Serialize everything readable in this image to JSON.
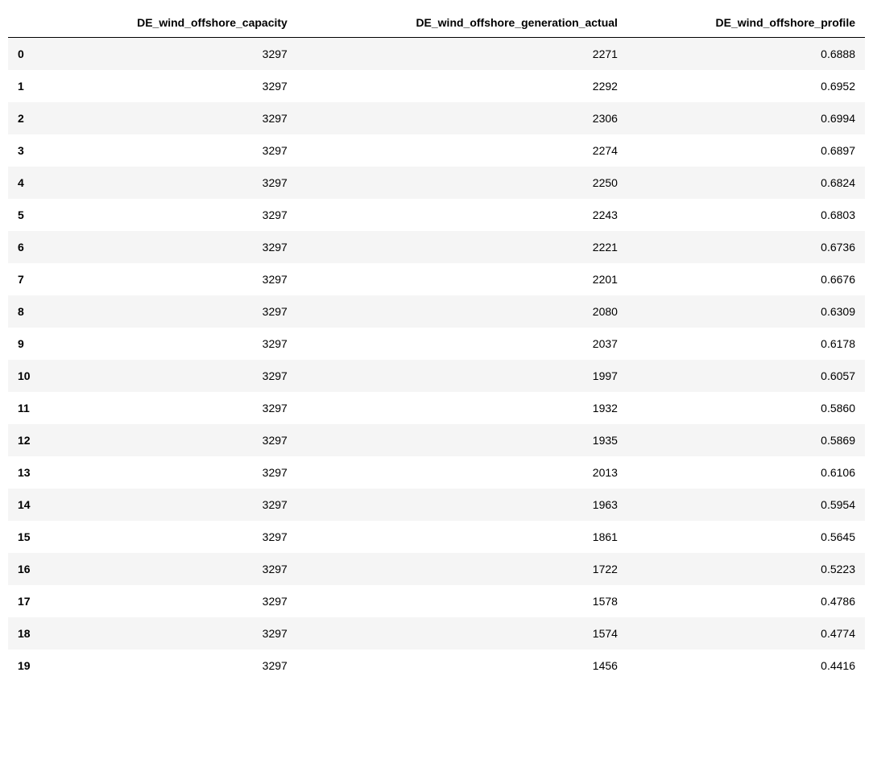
{
  "table": {
    "type": "table",
    "background_color": "#ffffff",
    "row_stripe_colors": [
      "#f5f5f5",
      "#ffffff"
    ],
    "header_border_color": "#000000",
    "text_color": "#000000",
    "font_size_pt": 10.5,
    "header_font_weight": 700,
    "index_font_weight": 700,
    "cell_font_weight": 400,
    "columns": [
      {
        "key": "capacity",
        "label": "DE_wind_offshore_capacity",
        "align": "right",
        "decimals": 0
      },
      {
        "key": "generation",
        "label": "DE_wind_offshore_generation_actual",
        "align": "right",
        "decimals": 0
      },
      {
        "key": "profile",
        "label": "DE_wind_offshore_profile",
        "align": "right",
        "decimals": 4
      }
    ],
    "index": [
      "0",
      "1",
      "2",
      "3",
      "4",
      "5",
      "6",
      "7",
      "8",
      "9",
      "10",
      "11",
      "12",
      "13",
      "14",
      "15",
      "16",
      "17",
      "18",
      "19"
    ],
    "data": [
      {
        "capacity": 3297,
        "generation": 2271,
        "profile": 0.6888
      },
      {
        "capacity": 3297,
        "generation": 2292,
        "profile": 0.6952
      },
      {
        "capacity": 3297,
        "generation": 2306,
        "profile": 0.6994
      },
      {
        "capacity": 3297,
        "generation": 2274,
        "profile": 0.6897
      },
      {
        "capacity": 3297,
        "generation": 2250,
        "profile": 0.6824
      },
      {
        "capacity": 3297,
        "generation": 2243,
        "profile": 0.6803
      },
      {
        "capacity": 3297,
        "generation": 2221,
        "profile": 0.6736
      },
      {
        "capacity": 3297,
        "generation": 2201,
        "profile": 0.6676
      },
      {
        "capacity": 3297,
        "generation": 2080,
        "profile": 0.6309
      },
      {
        "capacity": 3297,
        "generation": 2037,
        "profile": 0.6178
      },
      {
        "capacity": 3297,
        "generation": 1997,
        "profile": 0.6057
      },
      {
        "capacity": 3297,
        "generation": 1932,
        "profile": 0.586
      },
      {
        "capacity": 3297,
        "generation": 1935,
        "profile": 0.5869
      },
      {
        "capacity": 3297,
        "generation": 2013,
        "profile": 0.6106
      },
      {
        "capacity": 3297,
        "generation": 1963,
        "profile": 0.5954
      },
      {
        "capacity": 3297,
        "generation": 1861,
        "profile": 0.5645
      },
      {
        "capacity": 3297,
        "generation": 1722,
        "profile": 0.5223
      },
      {
        "capacity": 3297,
        "generation": 1578,
        "profile": 0.4786
      },
      {
        "capacity": 3297,
        "generation": 1574,
        "profile": 0.4774
      },
      {
        "capacity": 3297,
        "generation": 1456,
        "profile": 0.4416
      }
    ]
  }
}
